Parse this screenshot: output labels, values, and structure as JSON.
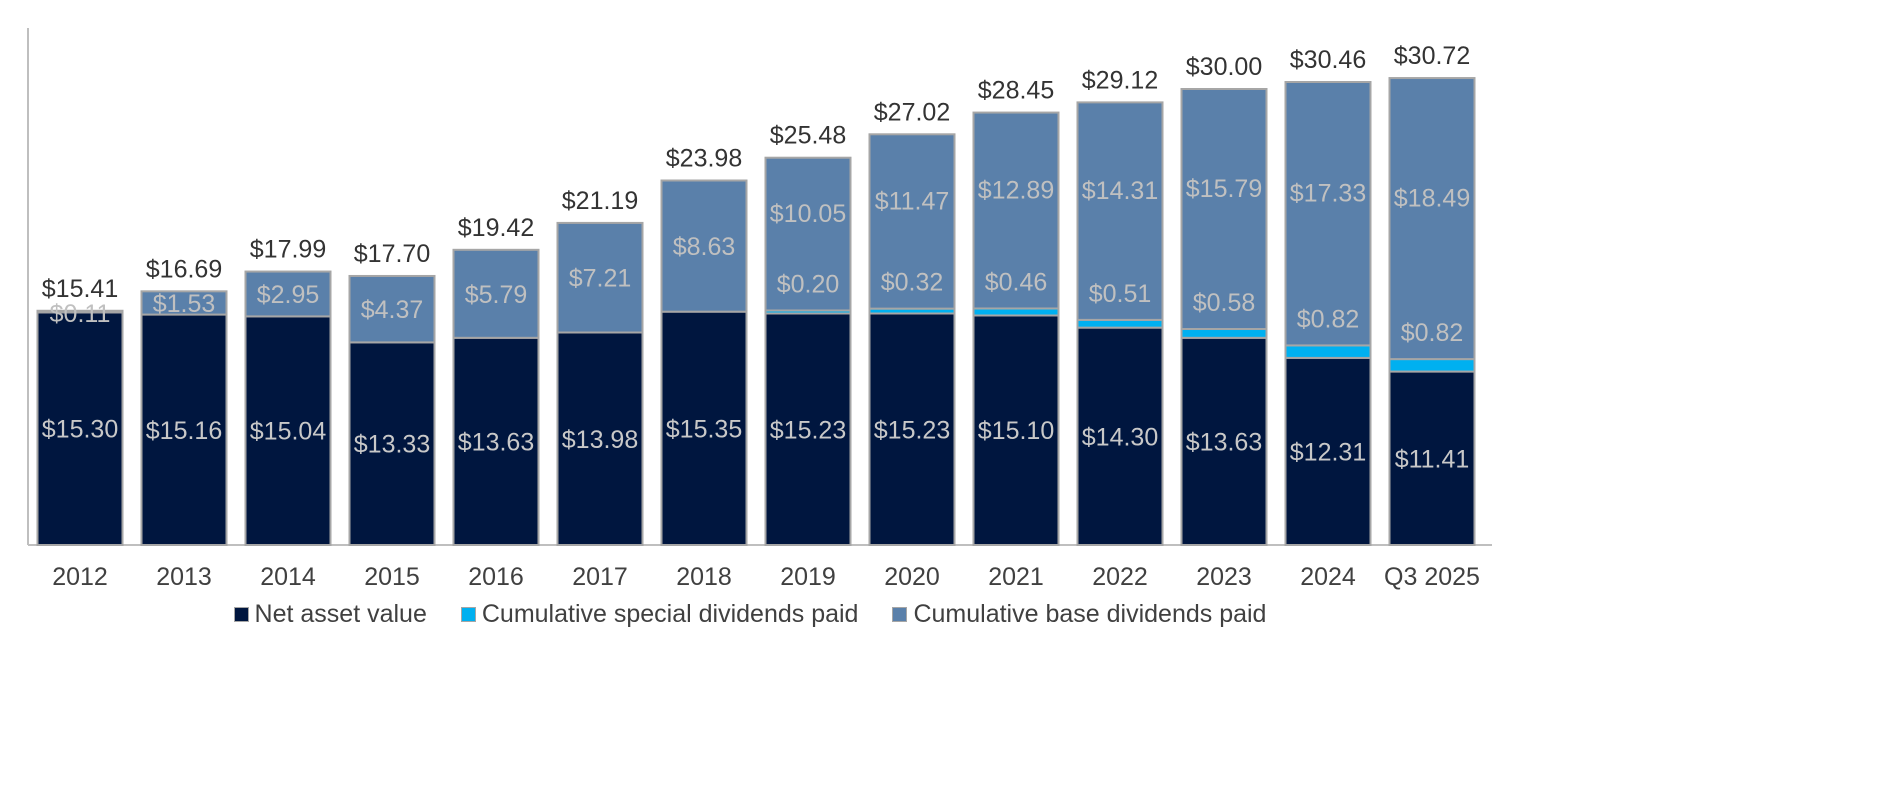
{
  "chart_data": {
    "type": "bar",
    "stacked": true,
    "title": "",
    "xlabel": "",
    "ylabel": "",
    "ylim": [
      0,
      35
    ],
    "grid": false,
    "legend_position": "bottom",
    "categories": [
      "2012",
      "2013",
      "2014",
      "2015",
      "2016",
      "2017",
      "2018",
      "2019",
      "2020",
      "2021",
      "2022",
      "2023",
      "2024",
      "Q3 2025"
    ],
    "series": [
      {
        "name": "Net asset value",
        "color": "#00163f",
        "values": [
          15.3,
          15.16,
          15.04,
          13.33,
          13.63,
          13.98,
          15.35,
          15.23,
          15.23,
          15.1,
          14.3,
          13.63,
          12.31,
          11.41
        ],
        "labels": [
          "$15.30",
          "$15.16",
          "$15.04",
          "$13.33",
          "$13.63",
          "$13.98",
          "$15.35",
          "$15.23",
          "$15.23",
          "$15.10",
          "$14.30",
          "$13.63",
          "$12.31",
          "$11.41"
        ]
      },
      {
        "name": "Cumulative special dividends paid",
        "color": "#00b0f0",
        "values": [
          0,
          0,
          0,
          0,
          0,
          0,
          0,
          0.2,
          0.32,
          0.46,
          0.51,
          0.58,
          0.82,
          0.82
        ],
        "labels": [
          null,
          null,
          null,
          null,
          null,
          null,
          null,
          "$0.20",
          "$0.32",
          "$0.46",
          "$0.51",
          "$0.58",
          "$0.82",
          "$0.82"
        ]
      },
      {
        "name": "Cumulative base dividends paid",
        "color": "#5a80aa",
        "values": [
          0.11,
          1.53,
          2.95,
          4.37,
          5.79,
          7.21,
          8.63,
          10.05,
          11.47,
          12.89,
          14.31,
          15.79,
          17.33,
          18.49
        ],
        "labels": [
          "$0.11",
          "$1.53",
          "$2.95",
          "$4.37",
          "$5.79",
          "$7.21",
          "$8.63",
          "$10.05",
          "$11.47",
          "$12.89",
          "$14.31",
          "$15.79",
          "$17.33",
          "$18.49"
        ]
      }
    ],
    "totals": [
      "$15.41",
      "$16.69",
      "$17.99",
      "$17.70",
      "$19.42",
      "$21.19",
      "$23.98",
      "$25.48",
      "$27.02",
      "$28.45",
      "$29.12",
      "$30.00",
      "$30.46",
      "$30.72"
    ]
  }
}
